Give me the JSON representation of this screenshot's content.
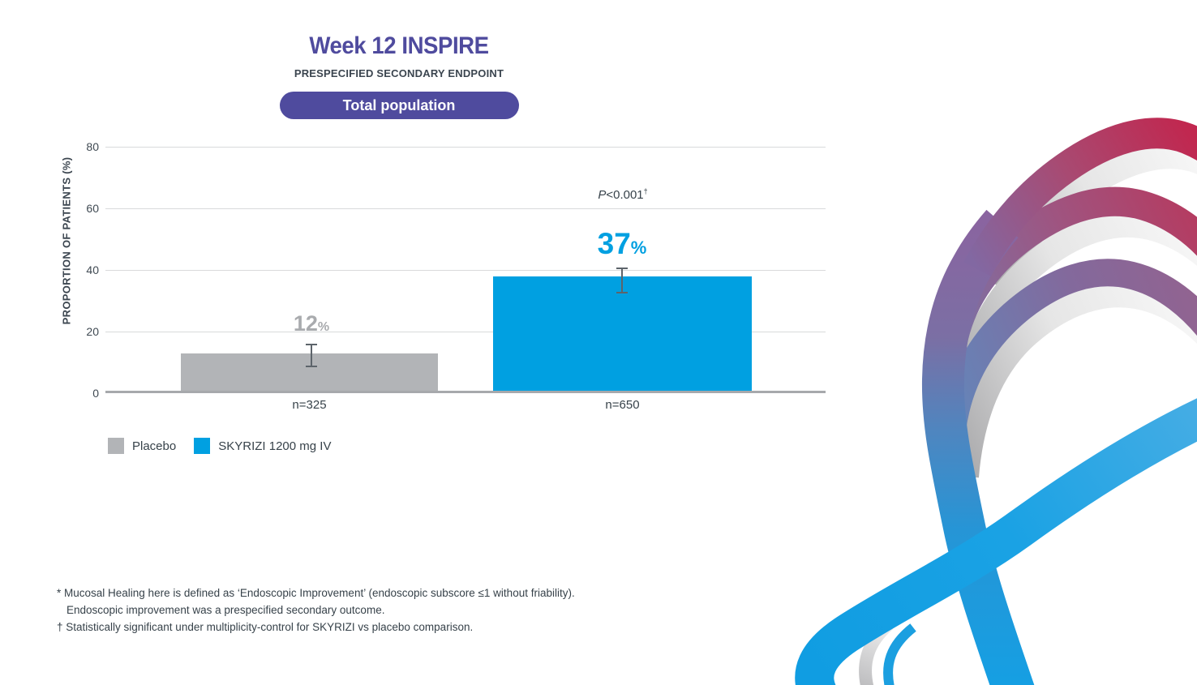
{
  "header": {
    "title": "Week 12 INSPIRE",
    "subtitle": "PRESPECIFIED SECONDARY ENDPOINT",
    "population_tag": "Total population"
  },
  "chart_data": {
    "type": "bar",
    "title": "Week 12 INSPIRE",
    "subtitle": "PRESPECIFIED SECONDARY ENDPOINT",
    "xlabel": "",
    "ylabel": "PROPORTION OF PATIENTS (%)",
    "ylim": [
      0,
      80
    ],
    "yticks": [
      0,
      20,
      40,
      60,
      80
    ],
    "grid": true,
    "legend_position": "bottom-left",
    "percent_sign": "%",
    "categories": [
      "Placebo",
      "SKYRIZI 1200 mg IV"
    ],
    "series": [
      {
        "name": "Placebo",
        "value": 12,
        "ci": [
          8.4,
          16.1
        ],
        "n_label": "n=325",
        "color": "#b2b4b7",
        "label_color": "#a9abae"
      },
      {
        "name": "SKYRIZI 1200 mg IV",
        "value": 37,
        "ci": [
          32.4,
          40.8
        ],
        "n_label": "n=650",
        "color": "#00a0e1",
        "label_color": "#00a0e1"
      }
    ],
    "annotation": {
      "p_prefix": "P",
      "p_value": "<0.001",
      "dagger": "†"
    }
  },
  "footnotes": {
    "lines": [
      "* Mucosal Healing here is defined as ‘Endoscopic Improvement’ (endoscopic subscore ≤1 without friability).",
      "Endoscopic improvement was a prespecified secondary outcome.",
      "† Statistically significant under multiplicity-control for SKYRIZI vs placebo comparison."
    ]
  },
  "colors": {
    "accent_purple": "#4f4b9e",
    "skyrizi_blue": "#00a0e1",
    "placebo_gray": "#b2b4b7",
    "ribbon_crimson": "#c1274f",
    "text_dark": "#37424a"
  }
}
